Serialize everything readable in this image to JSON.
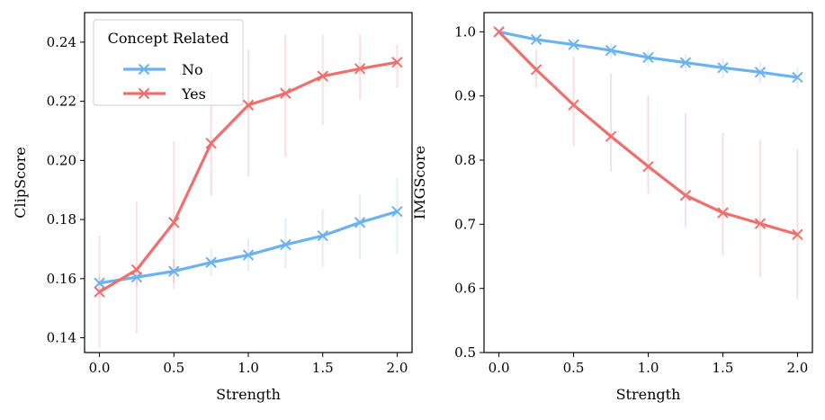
{
  "chart_data": [
    {
      "type": "line",
      "xlabel": "Strength",
      "ylabel": "ClipScore",
      "xlim": [
        -0.1,
        2.1
      ],
      "ylim": [
        0.135,
        0.25
      ],
      "xticks": [
        0.0,
        0.5,
        1.0,
        1.5,
        2.0
      ],
      "xtick_labels": [
        "0.0",
        "0.5",
        "1.0",
        "1.5",
        "2.0"
      ],
      "yticks": [
        0.14,
        0.16,
        0.18,
        0.2,
        0.22,
        0.24
      ],
      "ytick_labels": [
        "0.14",
        "0.16",
        "0.18",
        "0.20",
        "0.22",
        "0.24"
      ],
      "grid": false,
      "legend": {
        "title": "Concept Related",
        "placement": "top-left",
        "entries": [
          "No",
          "Yes"
        ]
      },
      "x": [
        0.0,
        0.25,
        0.5,
        0.75,
        1.0,
        1.25,
        1.5,
        1.75,
        2.0
      ],
      "series": [
        {
          "name": "No",
          "color": "#6cb2f0",
          "values": [
            0.1585,
            0.1605,
            0.1625,
            0.1655,
            0.168,
            0.1715,
            0.1745,
            0.179,
            0.1827
          ],
          "err_low": [
            0.156,
            0.1575,
            0.1585,
            0.161,
            0.1625,
            0.1635,
            0.164,
            0.1665,
            0.1685
          ],
          "err_high": [
            0.1605,
            0.1625,
            0.1665,
            0.17,
            0.1735,
            0.1805,
            0.1835,
            0.1885,
            0.194
          ]
        },
        {
          "name": "Yes",
          "color": "#ef6f6c",
          "values": [
            0.1555,
            0.163,
            0.179,
            0.2058,
            0.2187,
            0.2227,
            0.2285,
            0.231,
            0.2332
          ],
          "err_low": [
            0.1365,
            0.1415,
            0.1565,
            0.188,
            0.1945,
            0.201,
            0.212,
            0.2205,
            0.2245
          ],
          "err_high": [
            0.1745,
            0.186,
            0.2065,
            0.2295,
            0.2375,
            0.2425,
            0.2425,
            0.2425,
            0.239
          ]
        }
      ]
    },
    {
      "type": "line",
      "xlabel": "Strength",
      "ylabel": "IMGScore",
      "xlim": [
        -0.1,
        2.1
      ],
      "ylim": [
        0.5,
        1.03
      ],
      "xticks": [
        0.0,
        0.5,
        1.0,
        1.5,
        2.0
      ],
      "xtick_labels": [
        "0.0",
        "0.5",
        "1.0",
        "1.5",
        "2.0"
      ],
      "yticks": [
        0.5,
        0.6,
        0.7,
        0.8,
        0.9,
        1.0
      ],
      "ytick_labels": [
        "0.5",
        "0.6",
        "0.7",
        "0.8",
        "0.9",
        "1.0"
      ],
      "grid": false,
      "x": [
        0.0,
        0.25,
        0.5,
        0.75,
        1.0,
        1.25,
        1.5,
        1.75,
        2.0
      ],
      "series": [
        {
          "name": "No",
          "color": "#6cb2f0",
          "values": [
            1.0,
            0.988,
            0.98,
            0.971,
            0.96,
            0.952,
            0.944,
            0.937,
            0.929
          ],
          "err_low": [
            1.0,
            0.98,
            0.968,
            0.958,
            0.946,
            0.937,
            0.928,
            0.92,
            0.912
          ],
          "err_high": [
            1.0,
            0.995,
            0.99,
            0.983,
            0.973,
            0.965,
            0.958,
            0.952,
            0.945
          ]
        },
        {
          "name": "Yes",
          "color": "#ef6f6c",
          "values": [
            1.0,
            0.941,
            0.886,
            0.837,
            0.79,
            0.745,
            0.718,
            0.701,
            0.684
          ],
          "err_low": [
            1.0,
            0.913,
            0.822,
            0.782,
            0.747,
            0.695,
            0.652,
            0.618,
            0.583
          ],
          "err_high": [
            1.0,
            0.972,
            0.962,
            0.935,
            0.9,
            0.873,
            0.843,
            0.832,
            0.817
          ]
        }
      ]
    }
  ]
}
